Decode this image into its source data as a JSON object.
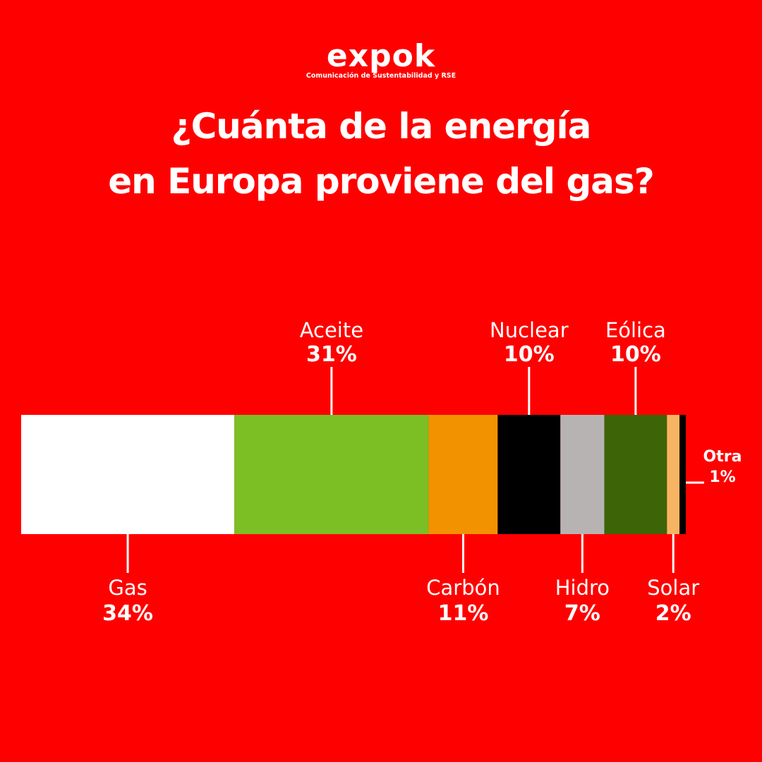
{
  "logo": {
    "word": "expok",
    "tagline": "Comunicación de Sustentabilidad y RSE"
  },
  "title": {
    "line1": "¿Cuánta de la energía",
    "line2": "en Europa proviene del gas?"
  },
  "colors": {
    "background": "#ff0000",
    "text": "#ffffff"
  },
  "chart_data": {
    "type": "bar",
    "orientation": "horizontal-stacked",
    "categories": [
      "Gas",
      "Aceite",
      "Carbón",
      "Nuclear",
      "Hidro",
      "Eólica",
      "Solar",
      "Otra"
    ],
    "values": [
      34,
      31,
      11,
      10,
      7,
      10,
      2,
      1
    ],
    "value_labels": [
      "34%",
      "31%",
      "11%",
      "10%",
      "7%",
      "10%",
      "2%",
      "1%"
    ],
    "label_positions": [
      "below",
      "above",
      "below",
      "above",
      "below",
      "above",
      "below",
      "right"
    ],
    "segment_colors": [
      "#ffffff",
      "#7bbf24",
      "#f39200",
      "#000000",
      "#b8b3b3",
      "#3e6408",
      "#f7b563",
      "#000000"
    ],
    "title": "¿Cuánta de la energía en Europa proviene del gas?"
  }
}
